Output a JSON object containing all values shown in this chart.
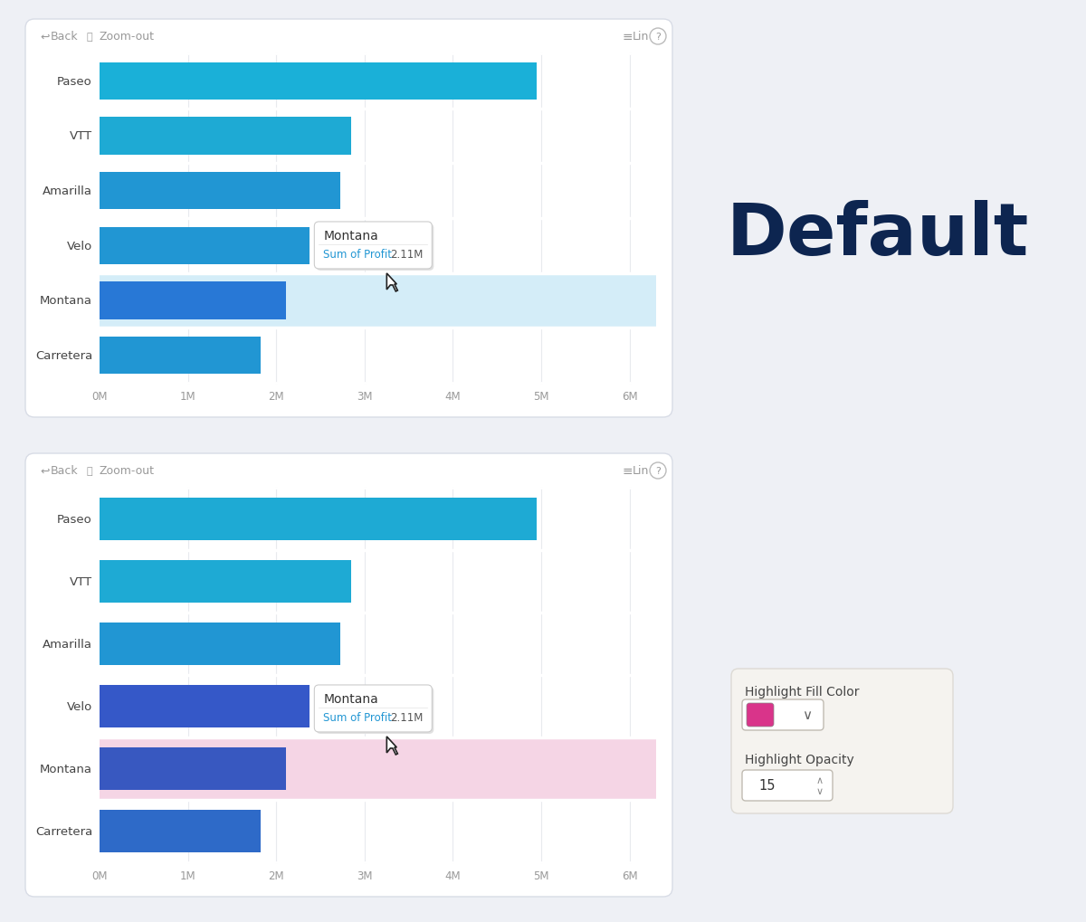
{
  "background_color": "#eef0f5",
  "panel_bg": "#ffffff",
  "panel_border": "#d8dce6",
  "categories": [
    "Paseo",
    "VTT",
    "Amarilla",
    "Velo",
    "Montana",
    "Carretera"
  ],
  "values_top": [
    4.95,
    2.85,
    2.72,
    2.38,
    2.11,
    1.82
  ],
  "values_bottom": [
    4.95,
    2.85,
    2.72,
    2.38,
    2.11,
    1.82
  ],
  "top_bar_colors": [
    "#1ab0d8",
    "#1eaad4",
    "#2196d3",
    "#2196d3",
    "#2878d6",
    "#2196d3"
  ],
  "bottom_bar_colors": [
    "#1eaad4",
    "#1eaad4",
    "#2196d3",
    "#3558c8",
    "#3858c0",
    "#2e6ac8"
  ],
  "highlight_color_top": "#d4edf8",
  "highlight_color_bottom": "#f5d5e5",
  "x_ticks": [
    0,
    1,
    2,
    3,
    4,
    5,
    6
  ],
  "x_tick_labels": [
    "0M",
    "1M",
    "2M",
    "3M",
    "4M",
    "5M",
    "6M"
  ],
  "x_max": 6.3,
  "tooltip_title": "Montana",
  "tooltip_label": "Sum of Profit",
  "tooltip_value": "2.11M",
  "default_label": "Default",
  "default_label_color": "#0d2550",
  "highlight_fill_label": "Highlight Fill Color",
  "highlight_opacity_label": "Highlight Opacity",
  "highlight_opacity_value": "15",
  "pink_color_swatch": "#d9348a",
  "toolbar_color": "#999999",
  "grid_color": "#e8eaee",
  "tick_color": "#999999",
  "label_color": "#444444",
  "separator_color": "#ffffff",
  "tooltip_title_color": "#333333",
  "tooltip_label_color": "#2196d3",
  "tooltip_value_color": "#555555",
  "settings_bg": "#f5f3ef",
  "settings_border": "#dddad4"
}
